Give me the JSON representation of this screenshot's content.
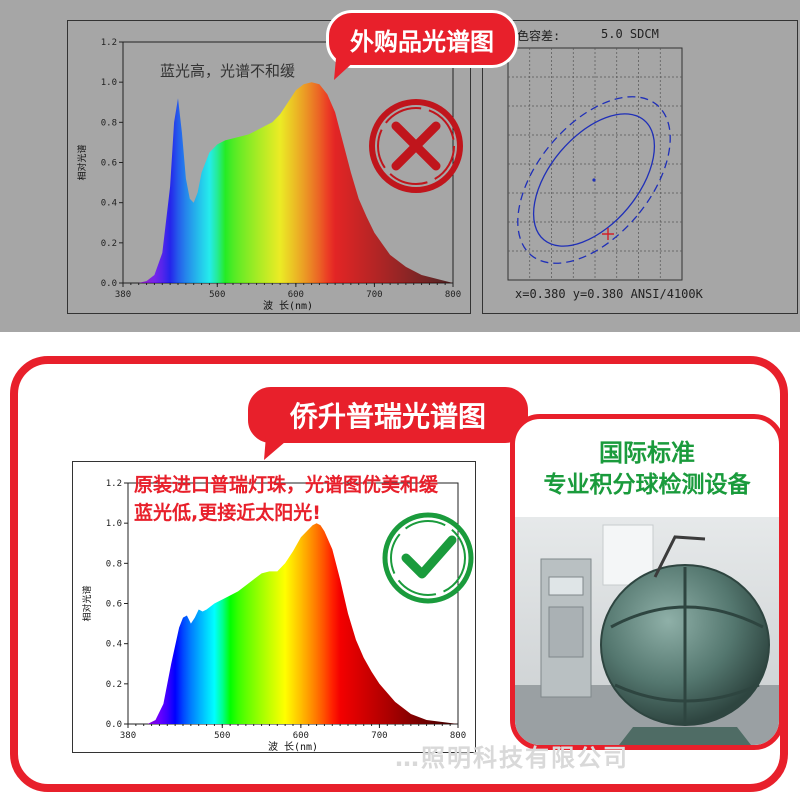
{
  "top": {
    "callout": "外购品光谱图",
    "note": "蓝光高，光谱不和缓",
    "ellipse_header_label": "色容差:",
    "ellipse_header_value": "5.0 SDCM",
    "ellipse_footer": "x=0.380 y=0.380 ANSI/4100K",
    "mark": "cross-icon",
    "mark_color": "#c0151c"
  },
  "bottom": {
    "callout": "侨升普瑞光谱图",
    "note_line1": "原装进口普瑞灯珠，光谱图优美和缓",
    "note_line2": "蓝光低,更接近太阳光!",
    "mark": "check-icon",
    "mark_color": "#1a9b3c",
    "photo_title_line1": "国际标准",
    "photo_title_line2": "专业积分球检测设备",
    "watermark": "…照明科技有限公司"
  },
  "chart_data": [
    {
      "type": "area",
      "title": "",
      "xlabel": "波 长(nm)",
      "ylabel": "相对光谱",
      "xlim": [
        380,
        800
      ],
      "ylim": [
        0,
        1.2
      ],
      "xticks": [
        380,
        500,
        600,
        700,
        800
      ],
      "yticks": [
        0.0,
        0.2,
        0.4,
        0.6,
        0.8,
        1.0,
        1.2
      ],
      "x": [
        400,
        410,
        420,
        430,
        440,
        445,
        450,
        455,
        460,
        465,
        470,
        475,
        480,
        490,
        500,
        510,
        520,
        530,
        540,
        550,
        560,
        570,
        580,
        590,
        600,
        610,
        620,
        630,
        640,
        650,
        660,
        670,
        680,
        690,
        700,
        720,
        740,
        760,
        780,
        800
      ],
      "y": [
        0,
        0.01,
        0.04,
        0.15,
        0.48,
        0.8,
        0.92,
        0.75,
        0.52,
        0.42,
        0.4,
        0.45,
        0.55,
        0.65,
        0.69,
        0.71,
        0.72,
        0.73,
        0.74,
        0.76,
        0.78,
        0.8,
        0.84,
        0.9,
        0.96,
        0.99,
        1.0,
        0.99,
        0.94,
        0.85,
        0.7,
        0.55,
        0.42,
        0.33,
        0.25,
        0.14,
        0.08,
        0.04,
        0.02,
        0
      ]
    },
    {
      "type": "area",
      "title": "",
      "xlabel": "波 长(nm)",
      "ylabel": "相对光谱",
      "xlim": [
        380,
        800
      ],
      "ylim": [
        0,
        1.2
      ],
      "xticks": [
        380,
        500,
        600,
        700,
        800
      ],
      "yticks": [
        0.0,
        0.2,
        0.4,
        0.6,
        0.8,
        1.0,
        1.2
      ],
      "x": [
        405,
        415,
        425,
        435,
        445,
        450,
        455,
        460,
        465,
        470,
        475,
        480,
        490,
        500,
        510,
        520,
        530,
        540,
        550,
        560,
        570,
        580,
        590,
        600,
        610,
        615,
        620,
        625,
        630,
        640,
        650,
        660,
        670,
        680,
        690,
        700,
        720,
        740,
        760,
        780,
        800
      ],
      "y": [
        0,
        0.02,
        0.1,
        0.3,
        0.48,
        0.53,
        0.54,
        0.5,
        0.53,
        0.57,
        0.56,
        0.57,
        0.6,
        0.62,
        0.64,
        0.66,
        0.69,
        0.72,
        0.75,
        0.76,
        0.76,
        0.8,
        0.86,
        0.93,
        0.97,
        0.99,
        1.0,
        0.99,
        0.96,
        0.87,
        0.72,
        0.55,
        0.42,
        0.33,
        0.26,
        0.2,
        0.11,
        0.05,
        0.02,
        0.01,
        0
      ]
    },
    {
      "type": "scatter",
      "title": "",
      "xlabel": "",
      "ylabel": "",
      "center": {
        "x": 0.38,
        "y": 0.38
      }
    }
  ]
}
